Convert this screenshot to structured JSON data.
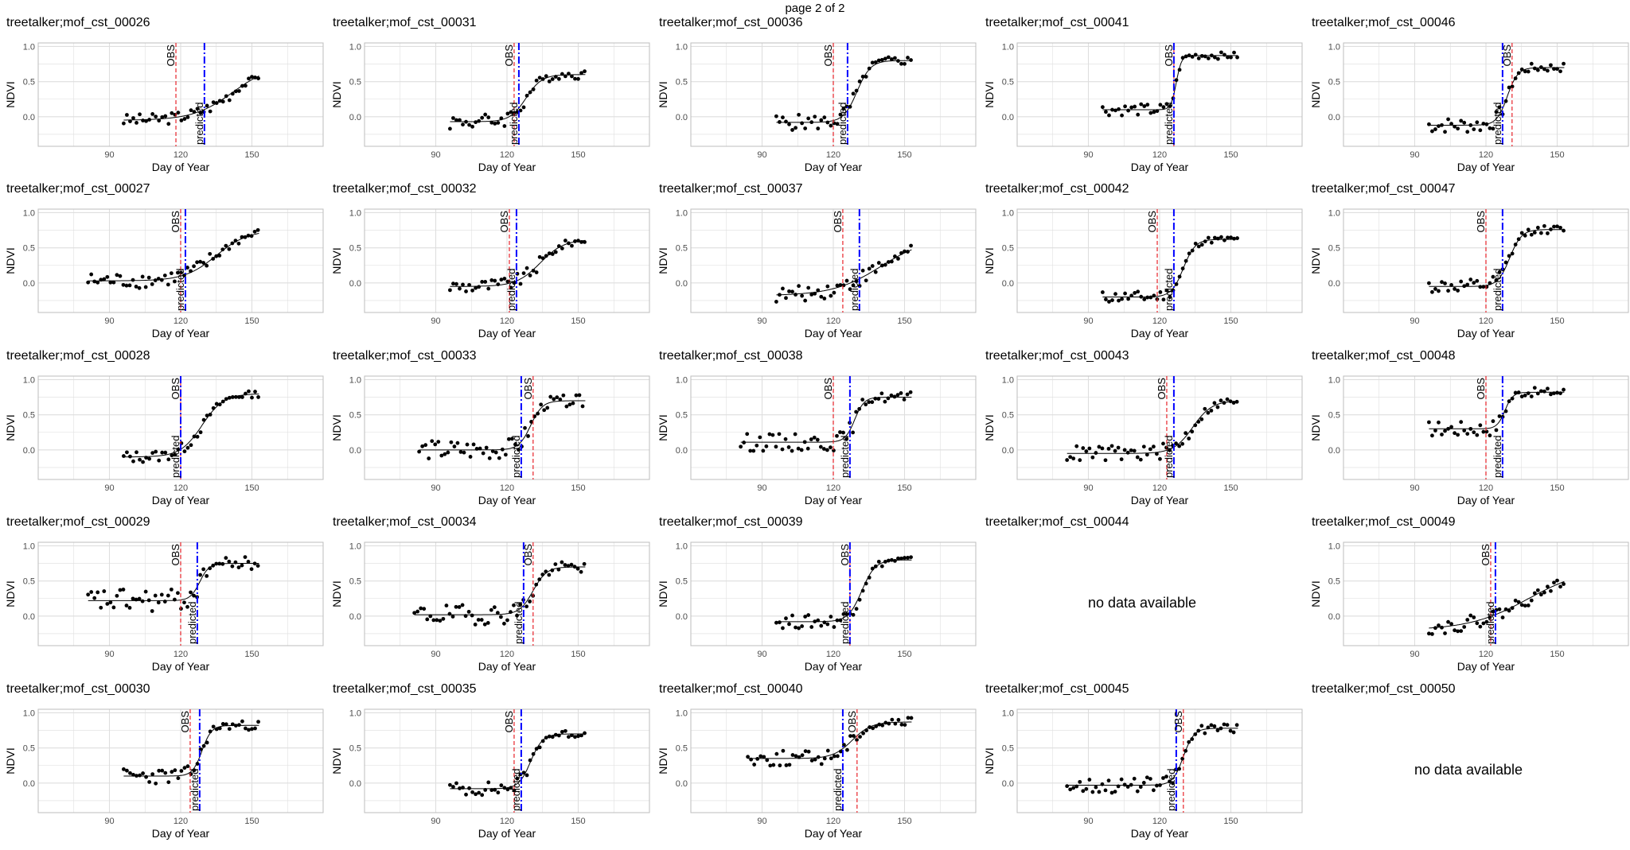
{
  "header": {
    "page_label": "page 2 of 2"
  },
  "common": {
    "xlabel": "Day of Year",
    "ylabel": "NDVI",
    "x_ticks": [
      90,
      120,
      150
    ],
    "y_ticks": [
      0.0,
      0.5,
      1.0
    ],
    "y_tick_labels": [
      "0.0",
      "0.5",
      "1.0"
    ],
    "xlim": [
      60,
      180
    ],
    "ylim": [
      -0.42,
      1.05
    ],
    "obs_label": "OBS",
    "pred_label": "predicted",
    "no_data_text": "no data available",
    "colors": {
      "obs_line": "#e8232a",
      "pred_line": "#0000ff",
      "points": "#000000",
      "fit": "#000000",
      "grid": "#dedede",
      "border": "#bdbdbd"
    }
  },
  "chart_data": [
    {
      "type": "scatter",
      "title": "treetalker;mof_cst_00026",
      "obs_doy": 118,
      "pred_doy": 130,
      "fit": {
        "base": -0.05,
        "top": 0.75,
        "mid": 142,
        "k": 0.12
      },
      "points_range": [
        96,
        153
      ],
      "scatter": 0.06,
      "has_data": true
    },
    {
      "type": "scatter",
      "title": "treetalker;mof_cst_00031",
      "obs_doy": 123,
      "pred_doy": 125,
      "fit": {
        "base": -0.07,
        "top": 0.6,
        "mid": 128,
        "k": 0.3
      },
      "points_range": [
        96,
        153
      ],
      "scatter": 0.08,
      "has_data": true
    },
    {
      "type": "scatter",
      "title": "treetalker;mof_cst_00036",
      "obs_doy": 120,
      "pred_doy": 126,
      "fit": {
        "base": -0.08,
        "top": 0.8,
        "mid": 130,
        "k": 0.35
      },
      "points_range": [
        96,
        153
      ],
      "scatter": 0.08,
      "has_data": true
    },
    {
      "type": "scatter",
      "title": "treetalker;mof_cst_00041",
      "obs_doy": 126,
      "pred_doy": 126,
      "fit": {
        "base": 0.1,
        "top": 0.87,
        "mid": 127,
        "k": 0.9
      },
      "points_range": [
        96,
        153
      ],
      "scatter": 0.06,
      "has_data": true
    },
    {
      "type": "scatter",
      "title": "treetalker;mof_cst_00046",
      "obs_doy": 131,
      "pred_doy": 127,
      "fit": {
        "base": -0.12,
        "top": 0.7,
        "mid": 129,
        "k": 0.45
      },
      "points_range": [
        96,
        153
      ],
      "scatter": 0.08,
      "has_data": true
    },
    {
      "type": "scatter",
      "title": "treetalker;mof_cst_00027",
      "obs_doy": 120,
      "pred_doy": 122,
      "fit": {
        "base": 0.03,
        "top": 0.75,
        "mid": 135,
        "k": 0.15
      },
      "points_range": [
        81,
        153
      ],
      "scatter": 0.08,
      "has_data": true
    },
    {
      "type": "scatter",
      "title": "treetalker;mof_cst_00032",
      "obs_doy": 121,
      "pred_doy": 124,
      "fit": {
        "base": -0.05,
        "top": 0.62,
        "mid": 134,
        "k": 0.2
      },
      "points_range": [
        96,
        153
      ],
      "scatter": 0.07,
      "has_data": true
    },
    {
      "type": "scatter",
      "title": "treetalker;mof_cst_00037",
      "obs_doy": 124,
      "pred_doy": 131,
      "fit": {
        "base": -0.18,
        "top": 0.65,
        "mid": 140,
        "k": 0.1
      },
      "points_range": [
        96,
        153
      ],
      "scatter": 0.08,
      "has_data": true
    },
    {
      "type": "scatter",
      "title": "treetalker;mof_cst_00042",
      "obs_doy": 119,
      "pred_doy": 126,
      "fit": {
        "base": -0.2,
        "top": 0.62,
        "mid": 130,
        "k": 0.4
      },
      "points_range": [
        96,
        153
      ],
      "scatter": 0.06,
      "has_data": true
    },
    {
      "type": "scatter",
      "title": "treetalker;mof_cst_00047",
      "obs_doy": 120,
      "pred_doy": 127,
      "fit": {
        "base": -0.05,
        "top": 0.76,
        "mid": 130,
        "k": 0.4
      },
      "points_range": [
        96,
        153
      ],
      "scatter": 0.07,
      "has_data": true
    },
    {
      "type": "scatter",
      "title": "treetalker;mof_cst_00028",
      "obs_doy": 120,
      "pred_doy": 120,
      "fit": {
        "base": -0.1,
        "top": 0.8,
        "mid": 129,
        "k": 0.22
      },
      "points_range": [
        96,
        153
      ],
      "scatter": 0.06,
      "has_data": true
    },
    {
      "type": "scatter",
      "title": "treetalker;mof_cst_00033",
      "obs_doy": 131,
      "pred_doy": 126,
      "fit": {
        "base": 0.0,
        "top": 0.7,
        "mid": 130,
        "k": 0.4
      },
      "points_range": [
        83,
        153
      ],
      "scatter": 0.1,
      "has_data": true
    },
    {
      "type": "scatter",
      "title": "treetalker;mof_cst_00038",
      "obs_doy": 120,
      "pred_doy": 127,
      "fit": {
        "base": 0.11,
        "top": 0.75,
        "mid": 129,
        "k": 0.5
      },
      "points_range": [
        81,
        153
      ],
      "scatter": 0.09,
      "has_data": true
    },
    {
      "type": "scatter",
      "title": "treetalker;mof_cst_00043",
      "obs_doy": 123,
      "pred_doy": 126,
      "fit": {
        "base": -0.05,
        "top": 0.7,
        "mid": 134,
        "k": 0.25
      },
      "points_range": [
        81,
        153
      ],
      "scatter": 0.08,
      "has_data": true
    },
    {
      "type": "scatter",
      "title": "treetalker;mof_cst_00048",
      "obs_doy": 120,
      "pred_doy": 127,
      "fit": {
        "base": 0.3,
        "top": 0.82,
        "mid": 128,
        "k": 0.6
      },
      "points_range": [
        96,
        153
      ],
      "scatter": 0.08,
      "has_data": true
    },
    {
      "type": "scatter",
      "title": "treetalker;mof_cst_00029",
      "obs_doy": 120,
      "pred_doy": 127,
      "fit": {
        "base": 0.22,
        "top": 0.75,
        "mid": 128,
        "k": 0.5
      },
      "points_range": [
        81,
        153
      ],
      "scatter": 0.12,
      "has_data": true
    },
    {
      "type": "scatter",
      "title": "treetalker;mof_cst_00034",
      "obs_doy": 131,
      "pred_doy": 127,
      "fit": {
        "base": 0.02,
        "top": 0.7,
        "mid": 131,
        "k": 0.35
      },
      "points_range": [
        81,
        153
      ],
      "scatter": 0.1,
      "has_data": true
    },
    {
      "type": "scatter",
      "title": "treetalker;mof_cst_00039",
      "obs_doy": 127,
      "pred_doy": 127,
      "fit": {
        "base": -0.08,
        "top": 0.8,
        "mid": 132,
        "k": 0.35
      },
      "points_range": [
        96,
        153
      ],
      "scatter": 0.07,
      "has_data": true
    },
    {
      "type": "scatter",
      "title": "treetalker;mof_cst_00044",
      "has_data": false
    },
    {
      "type": "scatter",
      "title": "treetalker;mof_cst_00049",
      "obs_doy": 122,
      "pred_doy": 124,
      "fit": {
        "base": -0.2,
        "top": 0.7,
        "mid": 138,
        "k": 0.08
      },
      "points_range": [
        96,
        153
      ],
      "scatter": 0.07,
      "has_data": true
    },
    {
      "type": "scatter",
      "title": "treetalker;mof_cst_00030",
      "obs_doy": 124,
      "pred_doy": 128,
      "fit": {
        "base": 0.1,
        "top": 0.82,
        "mid": 129,
        "k": 0.5
      },
      "points_range": [
        96,
        153
      ],
      "scatter": 0.08,
      "has_data": true
    },
    {
      "type": "scatter",
      "title": "treetalker;mof_cst_00035",
      "obs_doy": 123,
      "pred_doy": 126,
      "fit": {
        "base": -0.08,
        "top": 0.7,
        "mid": 130,
        "k": 0.4
      },
      "points_range": [
        96,
        153
      ],
      "scatter": 0.07,
      "has_data": true
    },
    {
      "type": "scatter",
      "title": "treetalker;mof_cst_00040",
      "obs_doy": 130,
      "pred_doy": 124,
      "fit": {
        "base": 0.35,
        "top": 0.87,
        "mid": 128,
        "k": 0.25
      },
      "points_range": [
        84,
        153
      ],
      "scatter": 0.08,
      "has_data": true
    },
    {
      "type": "scatter",
      "title": "treetalker;mof_cst_00045",
      "obs_doy": 130,
      "pred_doy": 127,
      "fit": {
        "base": -0.03,
        "top": 0.78,
        "mid": 130,
        "k": 0.45
      },
      "points_range": [
        81,
        153
      ],
      "scatter": 0.08,
      "has_data": true
    },
    {
      "type": "scatter",
      "title": "treetalker;mof_cst_00050",
      "has_data": false
    }
  ]
}
